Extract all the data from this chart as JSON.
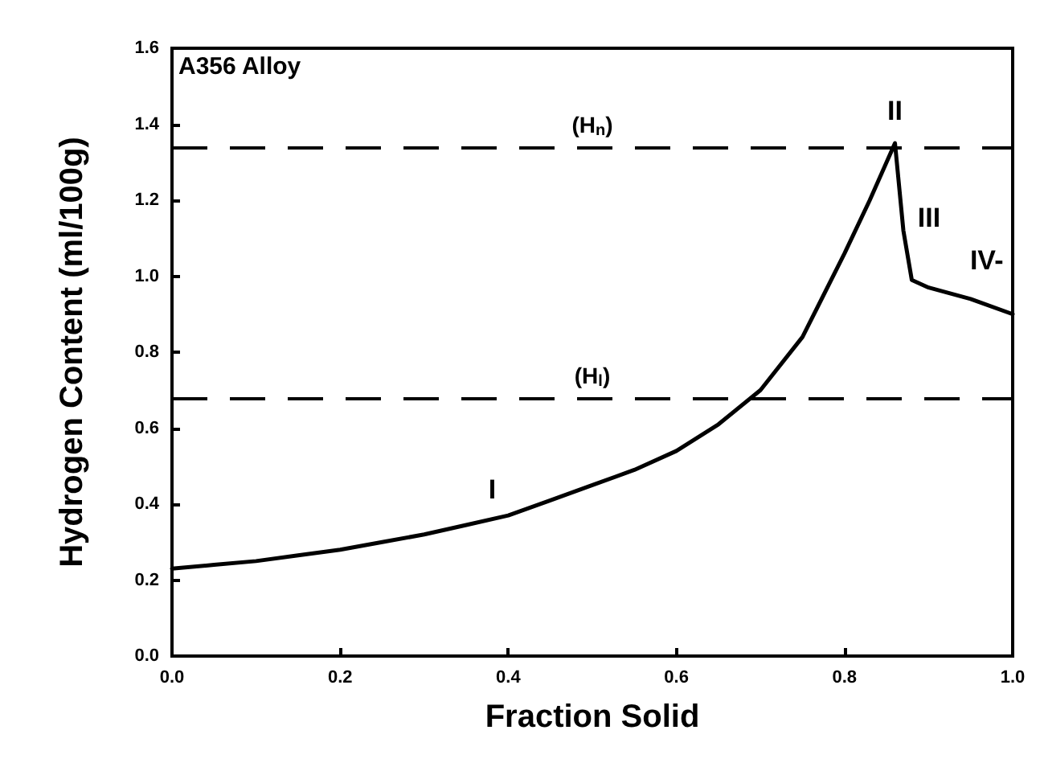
{
  "chart_data": {
    "type": "line",
    "xlabel": "Fraction Solid",
    "ylabel": "Hydrogen Content (ml/100g)",
    "x": [
      0,
      0.05,
      0.1,
      0.15,
      0.2,
      0.25,
      0.3,
      0.35,
      0.4,
      0.45,
      0.5,
      0.55,
      0.6,
      0.65,
      0.7,
      0.75,
      0.8,
      0.83,
      0.85,
      0.86,
      0.87,
      0.88,
      0.9,
      0.95,
      1.0
    ],
    "series": [
      {
        "color": "#000000",
        "values": [
          0.23,
          0.24,
          0.25,
          0.265,
          0.28,
          0.3,
          0.32,
          0.345,
          0.37,
          0.41,
          0.45,
          0.49,
          0.54,
          0.61,
          0.7,
          0.84,
          1.06,
          1.2,
          1.3,
          1.35,
          1.12,
          0.99,
          0.97,
          0.94,
          0.9
        ]
      }
    ],
    "xlim": [
      0,
      1.0
    ],
    "ylim": [
      0,
      1.6
    ],
    "xticks": [
      {
        "value": 0,
        "label": "0.0"
      },
      0.2,
      0.4,
      0.6,
      0.8,
      {
        "value": 1,
        "label": "1.0"
      }
    ],
    "yticks": [
      {
        "value": 0,
        "label": "0.0"
      },
      0.2,
      0.4,
      0.6,
      0.8,
      {
        "value": 1,
        "label": "1.0"
      },
      1.2,
      1.4,
      1.6
    ],
    "ref_lines": [
      {
        "axis": "y",
        "value": 1.34,
        "label": "(H$_{n}$)",
        "line_style": "dashed"
      },
      {
        "axis": "y",
        "value": 0.68,
        "label": "(H$_{l}$)",
        "line_style": "dashed"
      }
    ],
    "annotations": [
      "A356 Alloy",
      {
        "text": "I",
        "x": 0.4,
        "y": 0.37
      },
      {
        "text": "II",
        "x": 0.86,
        "y": 1.35
      },
      {
        "text": "III",
        "x": 0.87,
        "y": 1.12
      },
      {
        "text": "IV-",
        "x": 0.95,
        "y": 0.94
      }
    ],
    "grid": false,
    "marker": "none",
    "line_style": "solid"
  }
}
